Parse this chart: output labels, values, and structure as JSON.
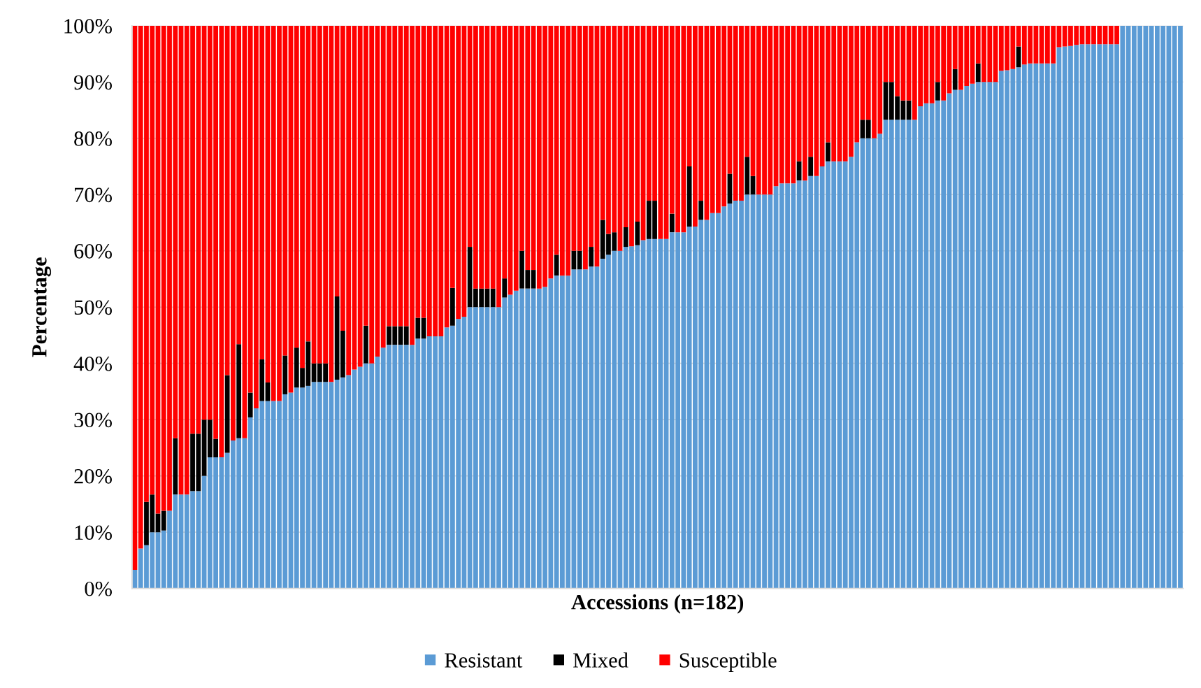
{
  "chart_data": {
    "type": "bar",
    "stacked": true,
    "xlabel": "Accessions (n=182)",
    "ylabel": "Percentage",
    "categories": [
      null,
      null,
      null,
      null,
      null,
      null,
      null,
      null,
      null,
      null,
      null,
      null,
      null,
      null,
      null,
      null,
      null,
      null,
      null,
      null,
      null,
      null,
      null,
      null,
      null,
      null,
      null,
      null,
      null,
      null,
      null,
      null,
      null,
      null,
      null,
      null,
      null,
      null,
      null,
      null,
      null,
      null,
      null,
      null,
      null,
      null,
      null,
      null,
      null,
      null,
      null,
      null,
      null,
      null,
      null,
      null,
      null,
      null,
      null,
      null,
      null,
      null,
      null,
      null,
      null,
      null,
      null,
      null,
      null,
      null,
      null,
      null,
      null,
      null,
      null,
      null,
      null,
      null,
      null,
      null,
      null,
      null,
      null,
      null,
      null,
      null,
      null,
      null,
      null,
      null,
      null,
      null,
      null,
      null,
      null,
      null,
      null,
      null,
      null,
      null,
      null,
      null,
      null,
      null,
      null,
      null,
      null,
      null,
      null,
      null,
      null,
      null,
      null,
      null,
      null,
      null,
      null,
      null,
      null,
      null,
      null,
      null,
      null,
      null,
      null,
      null,
      null,
      null,
      null,
      null,
      null,
      null,
      null,
      null,
      null,
      null,
      null,
      null,
      null,
      null,
      null,
      null,
      null,
      null,
      null,
      null,
      null,
      null,
      null,
      null,
      null,
      null,
      null,
      null,
      null,
      null,
      null,
      null,
      null,
      null,
      null,
      null,
      null,
      null,
      null,
      null,
      null,
      null,
      null,
      null,
      null,
      null,
      null,
      null,
      null,
      null,
      null,
      null,
      null,
      null,
      null,
      null
    ],
    "series": [
      {
        "name": "Resistant",
        "color": "#5b9bd5",
        "values": [
          3.3,
          7.1,
          7.7,
          10.0,
          10.0,
          10.3,
          13.8,
          16.7,
          16.7,
          16.7,
          17.3,
          17.3,
          20.0,
          23.3,
          23.3,
          23.3,
          24.1,
          26.3,
          26.7,
          26.7,
          30.4,
          32.0,
          33.3,
          33.3,
          33.3,
          33.3,
          34.5,
          34.8,
          35.7,
          35.7,
          36.0,
          36.7,
          36.7,
          36.7,
          36.7,
          37.1,
          37.5,
          37.9,
          38.9,
          39.4,
          40.0,
          40.0,
          41.2,
          42.8,
          43.3,
          43.3,
          43.3,
          43.3,
          43.3,
          44.4,
          44.4,
          44.8,
          44.8,
          44.8,
          46.4,
          46.7,
          47.9,
          48.3,
          50.0,
          50.0,
          50.0,
          50.0,
          50.0,
          50.0,
          51.7,
          52.2,
          52.9,
          53.3,
          53.3,
          53.3,
          53.3,
          53.6,
          55.1,
          55.6,
          55.6,
          55.6,
          56.7,
          56.7,
          56.7,
          57.2,
          57.2,
          58.6,
          59.3,
          60.0,
          60.0,
          60.7,
          60.8,
          61.0,
          61.9,
          62.1,
          62.1,
          62.1,
          62.1,
          63.3,
          63.3,
          63.3,
          64.3,
          64.3,
          65.5,
          65.5,
          66.7,
          66.7,
          67.9,
          68.4,
          68.9,
          68.9,
          70.0,
          70.0,
          70.0,
          70.0,
          70.0,
          71.5,
          72.0,
          72.0,
          72.0,
          72.5,
          72.5,
          73.3,
          73.3,
          75.0,
          75.9,
          75.9,
          75.9,
          75.9,
          76.7,
          79.3,
          80.0,
          80.0,
          80.0,
          80.8,
          83.3,
          83.3,
          83.3,
          83.3,
          83.3,
          83.3,
          85.7,
          86.2,
          86.2,
          86.7,
          86.7,
          88.0,
          88.6,
          88.6,
          89.3,
          89.7,
          90.0,
          90.0,
          90.0,
          90.0,
          92.0,
          92.1,
          92.3,
          92.6,
          93.1,
          93.3,
          93.3,
          93.3,
          93.3,
          93.3,
          96.2,
          96.3,
          96.4,
          96.6,
          96.7,
          96.7,
          96.7,
          96.7,
          96.7,
          96.7,
          96.7,
          100,
          100,
          100,
          100,
          100,
          100,
          100,
          100,
          100,
          100,
          100
        ]
      },
      {
        "name": "Mixed",
        "color": "#000000",
        "values": [
          0,
          0,
          7.7,
          6.7,
          3.3,
          3.5,
          0,
          10.0,
          0,
          0,
          10.2,
          10.2,
          10.0,
          6.7,
          3.3,
          0,
          13.8,
          0,
          16.7,
          0,
          4.4,
          0,
          7.4,
          3.3,
          0,
          0,
          6.9,
          0,
          7.1,
          3.5,
          7.9,
          3.3,
          3.3,
          3.3,
          0,
          14.8,
          8.3,
          0,
          0,
          0,
          6.7,
          0,
          0,
          0,
          3.3,
          3.3,
          3.3,
          3.3,
          0,
          3.7,
          3.7,
          0,
          0,
          0,
          0,
          6.7,
          0,
          0,
          10.7,
          3.3,
          3.3,
          3.3,
          3.3,
          0,
          3.4,
          0,
          0,
          6.7,
          3.3,
          3.3,
          0,
          0,
          0,
          3.7,
          0,
          0,
          3.3,
          3.3,
          0,
          3.5,
          0,
          6.9,
          3.7,
          3.3,
          0,
          3.5,
          0,
          4.2,
          0,
          6.8,
          6.8,
          0,
          0,
          3.3,
          0,
          0,
          10.7,
          0,
          3.4,
          0,
          0,
          0,
          0,
          5.3,
          0,
          0,
          6.7,
          3.3,
          0,
          0,
          0,
          0,
          0,
          0,
          0,
          3.4,
          0,
          3.4,
          0,
          0,
          3.4,
          0,
          0,
          0,
          0,
          0,
          3.3,
          3.3,
          0,
          0,
          6.7,
          6.7,
          4.2,
          3.4,
          3.4,
          0,
          0,
          0,
          0,
          3.3,
          0,
          0,
          3.7,
          0,
          0,
          0,
          3.3,
          0,
          0,
          0,
          0,
          0,
          0,
          3.7,
          0,
          0,
          0,
          0,
          0,
          0,
          0,
          0,
          0,
          0,
          0,
          0,
          0,
          0,
          0,
          0,
          0,
          0,
          0,
          0,
          0,
          0,
          0,
          0,
          0,
          0,
          0,
          0
        ]
      },
      {
        "name": "Susceptible",
        "color": "#ff0000",
        "values": [
          96.7,
          92.9,
          84.6,
          83.3,
          86.7,
          86.2,
          86.2,
          73.3,
          83.3,
          83.3,
          72.5,
          72.5,
          70.0,
          70.0,
          73.4,
          76.7,
          62.1,
          73.7,
          56.6,
          73.3,
          65.2,
          68.0,
          59.3,
          63.4,
          66.7,
          66.7,
          58.6,
          65.2,
          57.2,
          60.8,
          56.1,
          60.0,
          60.0,
          60.0,
          63.3,
          48.1,
          54.2,
          62.1,
          61.1,
          60.6,
          53.3,
          60.0,
          58.8,
          57.2,
          53.4,
          53.4,
          53.4,
          53.4,
          56.7,
          51.9,
          51.9,
          55.2,
          55.2,
          55.2,
          53.6,
          46.6,
          52.1,
          51.7,
          39.3,
          46.7,
          46.7,
          46.7,
          46.7,
          50.0,
          44.9,
          47.8,
          47.1,
          40.0,
          43.4,
          43.4,
          46.7,
          46.4,
          44.9,
          40.7,
          44.4,
          44.4,
          40.0,
          40.0,
          43.3,
          39.3,
          42.8,
          34.5,
          37.0,
          36.7,
          40.0,
          35.8,
          39.2,
          34.8,
          38.1,
          31.1,
          31.1,
          37.9,
          37.9,
          33.4,
          36.7,
          36.7,
          25.0,
          35.7,
          31.1,
          34.5,
          33.3,
          33.3,
          32.1,
          26.3,
          31.1,
          31.1,
          23.3,
          26.7,
          30.0,
          30.0,
          30.0,
          28.5,
          28.0,
          28.0,
          28.0,
          24.1,
          27.5,
          23.3,
          26.7,
          25.0,
          20.7,
          24.1,
          24.1,
          24.1,
          23.3,
          20.7,
          16.7,
          16.7,
          20.0,
          19.2,
          10.0,
          10.0,
          12.5,
          13.3,
          13.3,
          16.7,
          14.3,
          13.8,
          13.8,
          10.0,
          13.3,
          12.0,
          7.7,
          11.4,
          10.7,
          10.3,
          6.7,
          10.0,
          10.0,
          10.0,
          8.0,
          7.9,
          7.7,
          3.7,
          6.9,
          6.7,
          6.7,
          6.7,
          6.7,
          6.7,
          3.8,
          3.7,
          3.6,
          3.4,
          3.3,
          3.3,
          3.3,
          3.3,
          3.3,
          3.3,
          3.3,
          0,
          0,
          0,
          0,
          0,
          0,
          0,
          0,
          0,
          0,
          0
        ]
      }
    ],
    "ylim": [
      0,
      100
    ],
    "yticks": [
      {
        "value": 0,
        "label": "0%"
      },
      {
        "value": 10,
        "label": "10%"
      },
      {
        "value": 20,
        "label": "20%"
      },
      {
        "value": 30,
        "label": "30%"
      },
      {
        "value": 40,
        "label": "40%"
      },
      {
        "value": 50,
        "label": "50%"
      },
      {
        "value": 60,
        "label": "60%"
      },
      {
        "value": 70,
        "label": "70%"
      },
      {
        "value": 80,
        "label": "80%"
      },
      {
        "value": 90,
        "label": "90%"
      },
      {
        "value": 100,
        "label": "100%"
      }
    ],
    "grid": "y",
    "legend": "bottom",
    "tick_labels": "y"
  }
}
